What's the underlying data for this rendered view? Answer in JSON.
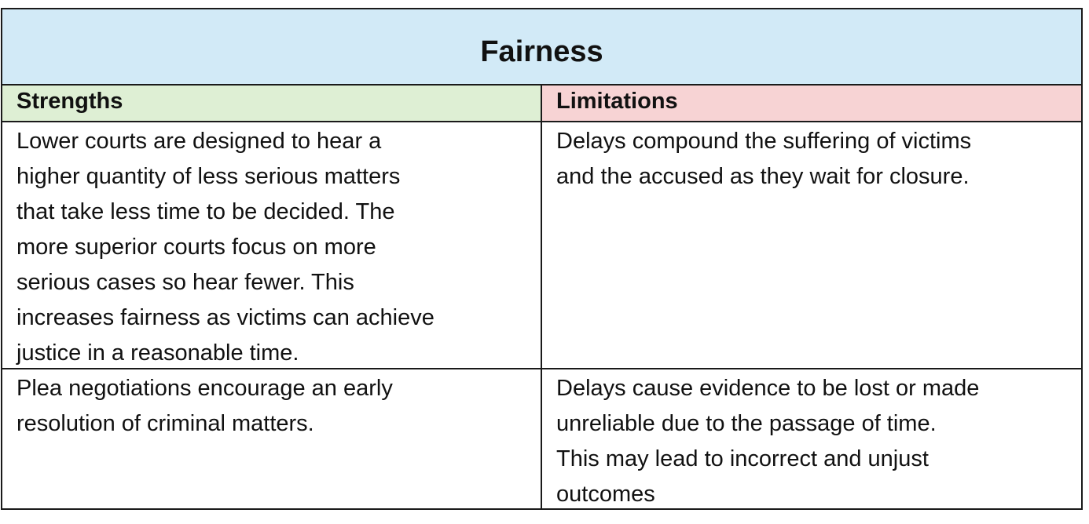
{
  "title": "Fairness",
  "headers": {
    "strengths": "Strengths",
    "limitations": "Limitations"
  },
  "rows": [
    {
      "strength": [
        "Lower courts are designed to hear a",
        "higher quantity of less serious matters",
        "that take less time to be decided. The",
        "more superior courts focus on more",
        "serious cases so hear fewer. This",
        "increases fairness as victims can achieve",
        "justice in a reasonable time."
      ],
      "limitation": [
        "Delays compound the suffering of victims",
        "and the accused as they wait for closure."
      ]
    },
    {
      "strength": [
        "Plea negotiations encourage an early",
        "resolution of criminal matters."
      ],
      "limitation": [
        "Delays cause evidence to be lost or made",
        "unreliable due to the passage of time.",
        "This may lead to incorrect and unjust",
        "outcomes"
      ]
    }
  ],
  "colors": {
    "title_bg": "#d2eaf7",
    "strengths_bg": "#deefd4",
    "limitations_bg": "#f7d3d4"
  }
}
